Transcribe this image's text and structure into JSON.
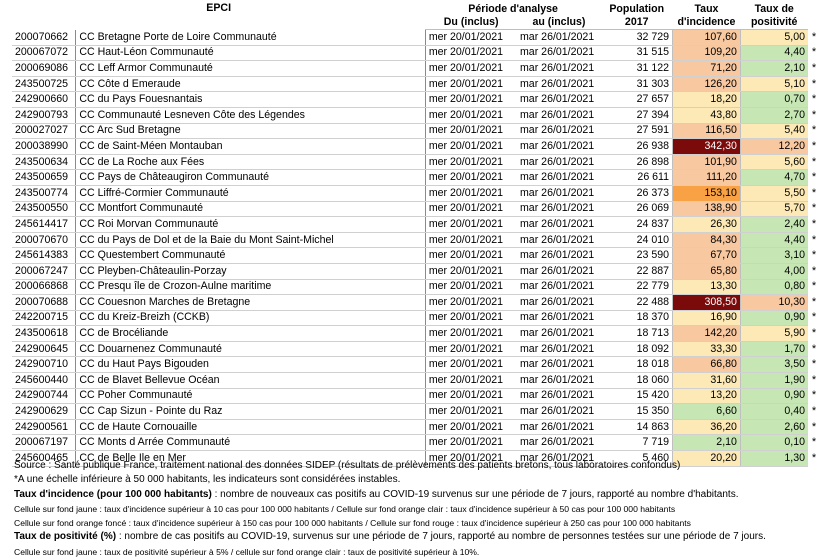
{
  "headers": {
    "epci": "EPCI",
    "period": "Période d'analyse",
    "from": "Du (inclus)",
    "to": "au (inclus)",
    "population": "Population",
    "population_year": "2017",
    "incidence_1": "Taux",
    "incidence_2": "d'incidence",
    "positivity_1": "Taux de",
    "positivity_2": "positivité"
  },
  "colors": {
    "green": "#c6e6b4",
    "yellow": "#fde9b5",
    "orange_light": "#f8c8a0",
    "orange_dark": "#f9a245",
    "red": "#7b0a0a"
  },
  "rows": [
    {
      "code": "200070662",
      "name": "CC Bretagne Porte de Loire Communauté",
      "from": "mer 20/01/2021",
      "to": "mar 26/01/2021",
      "pop": "32 729",
      "inc": "107,60",
      "inc_color": "orange_light",
      "pos": "5,00",
      "pos_color": "yellow",
      "star": "*"
    },
    {
      "code": "200067072",
      "name": "CC Haut-Léon Communauté",
      "from": "mer 20/01/2021",
      "to": "mar 26/01/2021",
      "pop": "31 515",
      "inc": "109,20",
      "inc_color": "orange_light",
      "pos": "4,40",
      "pos_color": "green",
      "star": "*"
    },
    {
      "code": "200069086",
      "name": "CC Leff Armor Communauté",
      "from": "mer 20/01/2021",
      "to": "mar 26/01/2021",
      "pop": "31 122",
      "inc": "71,20",
      "inc_color": "orange_light",
      "pos": "2,10",
      "pos_color": "green",
      "star": "*"
    },
    {
      "code": "243500725",
      "name": "CC Côte d Emeraude",
      "from": "mer 20/01/2021",
      "to": "mar 26/01/2021",
      "pop": "31 303",
      "inc": "126,20",
      "inc_color": "orange_light",
      "pos": "5,10",
      "pos_color": "yellow",
      "star": "*"
    },
    {
      "code": "242900660",
      "name": "CC du Pays Fouesnantais",
      "from": "mer 20/01/2021",
      "to": "mar 26/01/2021",
      "pop": "27 657",
      "inc": "18,20",
      "inc_color": "yellow",
      "pos": "0,70",
      "pos_color": "green",
      "star": "*"
    },
    {
      "code": "242900793",
      "name": "CC Communauté Lesneven Côte des Légendes",
      "from": "mer 20/01/2021",
      "to": "mar 26/01/2021",
      "pop": "27 394",
      "inc": "43,80",
      "inc_color": "yellow",
      "pos": "2,70",
      "pos_color": "green",
      "star": "*"
    },
    {
      "code": "200027027",
      "name": "CC Arc Sud Bretagne",
      "from": "mer 20/01/2021",
      "to": "mar 26/01/2021",
      "pop": "27 591",
      "inc": "116,50",
      "inc_color": "orange_light",
      "pos": "5,40",
      "pos_color": "yellow",
      "star": "*"
    },
    {
      "code": "200038990",
      "name": "CC de Saint-Méen Montauban",
      "from": "mer 20/01/2021",
      "to": "mar 26/01/2021",
      "pop": "26 938",
      "inc": "342,30",
      "inc_color": "red",
      "pos": "12,20",
      "pos_color": "orange_light",
      "star": "*"
    },
    {
      "code": "243500634",
      "name": "CC de La Roche aux Fées",
      "from": "mer 20/01/2021",
      "to": "mar 26/01/2021",
      "pop": "26 898",
      "inc": "101,90",
      "inc_color": "orange_light",
      "pos": "5,60",
      "pos_color": "yellow",
      "star": "*"
    },
    {
      "code": "243500659",
      "name": "CC Pays de Châteaugiron Communauté",
      "from": "mer 20/01/2021",
      "to": "mar 26/01/2021",
      "pop": "26 611",
      "inc": "111,20",
      "inc_color": "orange_light",
      "pos": "4,70",
      "pos_color": "green",
      "star": "*"
    },
    {
      "code": "243500774",
      "name": "CC Liffré-Cormier Communauté",
      "from": "mer 20/01/2021",
      "to": "mar 26/01/2021",
      "pop": "26 373",
      "inc": "153,10",
      "inc_color": "orange_dark",
      "pos": "5,50",
      "pos_color": "yellow",
      "star": "*"
    },
    {
      "code": "243500550",
      "name": "CC Montfort Communauté",
      "from": "mer 20/01/2021",
      "to": "mar 26/01/2021",
      "pop": "26 069",
      "inc": "138,90",
      "inc_color": "orange_light",
      "pos": "5,70",
      "pos_color": "yellow",
      "star": "*"
    },
    {
      "code": "245614417",
      "name": "CC Roi Morvan Communauté",
      "from": "mer 20/01/2021",
      "to": "mar 26/01/2021",
      "pop": "24 837",
      "inc": "26,30",
      "inc_color": "yellow",
      "pos": "2,40",
      "pos_color": "green",
      "star": "*"
    },
    {
      "code": "200070670",
      "name": "CC du Pays de Dol et de la Baie du Mont Saint-Michel",
      "from": "mer 20/01/2021",
      "to": "mar 26/01/2021",
      "pop": "24 010",
      "inc": "84,30",
      "inc_color": "orange_light",
      "pos": "4,40",
      "pos_color": "green",
      "star": "*"
    },
    {
      "code": "245614383",
      "name": "CC Questembert Communauté",
      "from": "mer 20/01/2021",
      "to": "mar 26/01/2021",
      "pop": "23 590",
      "inc": "67,70",
      "inc_color": "orange_light",
      "pos": "3,10",
      "pos_color": "green",
      "star": "*"
    },
    {
      "code": "200067247",
      "name": "CC Pleyben-Châteaulin-Porzay",
      "from": "mer 20/01/2021",
      "to": "mar 26/01/2021",
      "pop": "22 887",
      "inc": "65,80",
      "inc_color": "orange_light",
      "pos": "4,00",
      "pos_color": "green",
      "star": "*"
    },
    {
      "code": "200066868",
      "name": "CC Presqu île de Crozon-Aulne maritime",
      "from": "mer 20/01/2021",
      "to": "mar 26/01/2021",
      "pop": "22 779",
      "inc": "13,30",
      "inc_color": "yellow",
      "pos": "0,80",
      "pos_color": "green",
      "star": "*"
    },
    {
      "code": "200070688",
      "name": "CC Couesnon Marches de Bretagne",
      "from": "mer 20/01/2021",
      "to": "mar 26/01/2021",
      "pop": "22 488",
      "inc": "308,50",
      "inc_color": "red",
      "pos": "10,30",
      "pos_color": "orange_light",
      "star": "*"
    },
    {
      "code": "242200715",
      "name": "CC du Kreiz-Breizh (CCKB)",
      "from": "mer 20/01/2021",
      "to": "mar 26/01/2021",
      "pop": "18 370",
      "inc": "16,90",
      "inc_color": "yellow",
      "pos": "0,90",
      "pos_color": "green",
      "star": "*"
    },
    {
      "code": "243500618",
      "name": "CC de Brocéliande",
      "from": "mer 20/01/2021",
      "to": "mar 26/01/2021",
      "pop": "18 713",
      "inc": "142,20",
      "inc_color": "orange_light",
      "pos": "5,90",
      "pos_color": "yellow",
      "star": "*"
    },
    {
      "code": "242900645",
      "name": "CC Douarnenez Communauté",
      "from": "mer 20/01/2021",
      "to": "mar 26/01/2021",
      "pop": "18 092",
      "inc": "33,30",
      "inc_color": "yellow",
      "pos": "1,70",
      "pos_color": "green",
      "star": "*"
    },
    {
      "code": "242900710",
      "name": "CC du Haut Pays Bigouden",
      "from": "mer 20/01/2021",
      "to": "mar 26/01/2021",
      "pop": "18 018",
      "inc": "66,80",
      "inc_color": "orange_light",
      "pos": "3,50",
      "pos_color": "green",
      "star": "*"
    },
    {
      "code": "245600440",
      "name": "CC de Blavet Bellevue Océan",
      "from": "mer 20/01/2021",
      "to": "mar 26/01/2021",
      "pop": "18 060",
      "inc": "31,60",
      "inc_color": "yellow",
      "pos": "1,90",
      "pos_color": "green",
      "star": "*"
    },
    {
      "code": "242900744",
      "name": "CC Poher Communauté",
      "from": "mer 20/01/2021",
      "to": "mar 26/01/2021",
      "pop": "15 420",
      "inc": "13,20",
      "inc_color": "yellow",
      "pos": "0,90",
      "pos_color": "green",
      "star": "*"
    },
    {
      "code": "242900629",
      "name": "CC Cap Sizun - Pointe du Raz",
      "from": "mer 20/01/2021",
      "to": "mar 26/01/2021",
      "pop": "15 350",
      "inc": "6,60",
      "inc_color": "green",
      "pos": "0,40",
      "pos_color": "green",
      "star": "*"
    },
    {
      "code": "242900561",
      "name": "CC de Haute Cornouaille",
      "from": "mer 20/01/2021",
      "to": "mar 26/01/2021",
      "pop": "14 863",
      "inc": "36,20",
      "inc_color": "yellow",
      "pos": "2,60",
      "pos_color": "green",
      "star": "*"
    },
    {
      "code": "200067197",
      "name": "CC Monts d Arrée Communauté",
      "from": "mer 20/01/2021",
      "to": "mar 26/01/2021",
      "pop": "7 719",
      "inc": "2,10",
      "inc_color": "green",
      "pos": "0,10",
      "pos_color": "green",
      "star": "*"
    },
    {
      "code": "245600465",
      "name": "CC de Belle Ile en Mer",
      "from": "mer 20/01/2021",
      "to": "mar 26/01/2021",
      "pop": "5 460",
      "inc": "20,20",
      "inc_color": "yellow",
      "pos": "1,30",
      "pos_color": "green",
      "star": "*"
    }
  ],
  "notes": {
    "source": "Source : Santé publique France, traitement national des données SIDEP (résultats de prélèvements des patients bretons, tous laboratoires confondus)",
    "asterisk": "*A une échelle inférieure à 50 000 habitants, les indicateurs sont considérées instables.",
    "incidence_bold": "Taux d'incidence (pour 100 000 habitants)",
    "incidence_text": " : nombre de nouveaux cas positifs au COVID-19 survenus sur une période de 7 jours, rapporté au nombre d'habitants.",
    "incidence_cells_1": "Cellule sur fond jaune :  taux d'incidence supérieur à 10 cas pour 100 000 habitants / Cellule sur fond orange clair : taux d'incidence supérieur à 50 cas pour 100 000 habitants",
    "incidence_cells_2": "Cellule sur fond orange foncé : taux d'incidence supérieur à 150 cas pour 100 000 habitants / Cellule sur fond rouge : taux d'incidence supérieur à 250 cas pour 100 000 habitants",
    "positivity_bold": "Taux de positivité (%)",
    "positivity_text": " : nombre de cas positifs au COVID-19, survenus sur une période de 7 jours, rapporté au nombre de personnes testées sur une période de 7 jours.",
    "positivity_cells": "Cellule sur fond jaune :  taux de positivité supérieur à 5% / cellule sur fond orange clair : taux de positivité supérieur à 10%."
  }
}
